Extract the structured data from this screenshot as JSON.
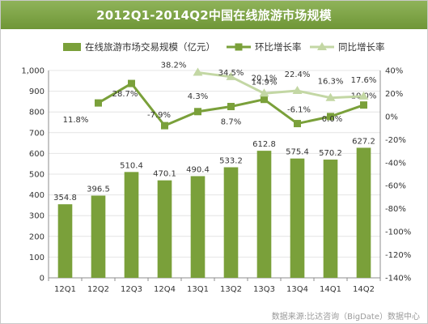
{
  "chart_data": {
    "type": "bar",
    "title": "2012Q1-2014Q2中国在线旅游市场规模",
    "categories": [
      "12Q1",
      "12Q2",
      "12Q3",
      "12Q4",
      "13Q1",
      "13Q2",
      "13Q3",
      "13Q4",
      "14Q1",
      "14Q2"
    ],
    "series": [
      {
        "name": "在线旅游市场交易规模（亿元）",
        "type": "bar",
        "axis": "left",
        "color": "#7aa03a",
        "values": [
          354.8,
          396.5,
          510.4,
          470.1,
          490.4,
          533.2,
          612.8,
          575.4,
          570.2,
          627.2
        ],
        "labels": [
          "354.8",
          "396.5",
          "510.4",
          "470.1",
          "490.4",
          "533.2",
          "612.8",
          "575.4",
          "570.2",
          "627.2"
        ]
      },
      {
        "name": "环比增长率",
        "type": "line",
        "axis": "right",
        "color": "#7aa03a",
        "values": [
          null,
          11.8,
          28.7,
          -7.9,
          4.3,
          8.7,
          14.9,
          -6.1,
          0.0,
          10.0
        ],
        "labels": [
          "",
          "11.8%",
          "28.7%",
          "-7.9%",
          "4.3%",
          "8.7%",
          "14.9%",
          "-6.1%",
          "0.0%",
          "10.0%"
        ]
      },
      {
        "name": "同比增长率",
        "type": "line",
        "axis": "right",
        "color": "#c3d7a4",
        "values": [
          null,
          null,
          null,
          null,
          38.2,
          34.5,
          20.1,
          22.4,
          16.3,
          17.6
        ],
        "labels": [
          "",
          "",
          "",
          "",
          "38.2%",
          "34.5%",
          "20.1%",
          "22.4%",
          "16.3%",
          "17.6%"
        ]
      }
    ],
    "y_left": {
      "min": 0,
      "max": 1000,
      "step": 100,
      "ticks": [
        "0",
        "100",
        "200",
        "300",
        "400",
        "500",
        "600",
        "700",
        "800",
        "900",
        "1,000"
      ]
    },
    "y_right": {
      "min": -140,
      "max": 40,
      "step": 20,
      "ticks": [
        "-140%",
        "-120%",
        "-100%",
        "-80%",
        "-60%",
        "-40%",
        "-20%",
        "0%",
        "20%",
        "40%"
      ]
    },
    "grid": true,
    "legend_position": "top"
  },
  "source_text": "数据来源:比达咨询（BigDate）数据中心"
}
